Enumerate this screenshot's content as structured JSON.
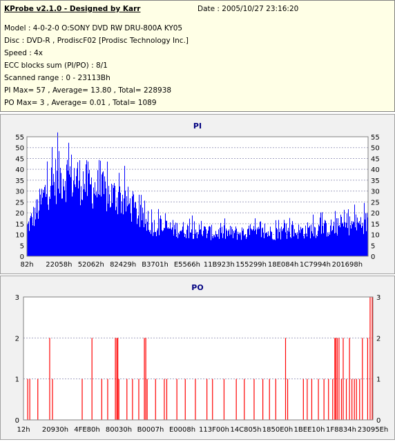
{
  "info": {
    "title": "KProbe v2.1.0 - Designed by Karr",
    "date": "Date : 2005/10/27 23:16:20",
    "lines": [
      "Model : 4-0-2-0 O:SONY    DVD RW DRU-800A  KY05",
      "Disc : DVD-R , ProdiscF02 [Prodisc Technology Inc.]",
      "Speed : 4x",
      "ECC blocks sum (PI/PO) : 8/1",
      "Scanned range : 0 - 23113Bh",
      "PI Max= 57 , Average= 13.80 , Total= 228938",
      "PO Max= 3 , Average= 0.01 , Total= 1089"
    ]
  },
  "colors": {
    "pi": "#0000ff",
    "po": "#ff0000",
    "grid": "#a0a0c0",
    "title": "#000080"
  },
  "chart_data": [
    {
      "type": "area",
      "title": "PI",
      "ylim": [
        0,
        55
      ],
      "yticks": [
        0,
        5,
        10,
        15,
        20,
        25,
        30,
        35,
        40,
        45,
        50,
        55
      ],
      "xticks": [
        "82h",
        "22058h",
        "52062h",
        "82429h",
        "B3701h",
        "E5566h",
        "11B923h",
        "155299h",
        "18E084h",
        "1C7994h",
        "201698h"
      ],
      "envelope": {
        "x": [
          0,
          3,
          6,
          9,
          12,
          15,
          18,
          21,
          24,
          27,
          30,
          33,
          36,
          40,
          45,
          50,
          55,
          60,
          70,
          80,
          90,
          100
        ],
        "y": [
          16,
          26,
          38,
          44,
          45,
          43,
          40,
          37,
          34,
          33,
          29,
          22,
          17,
          16,
          15,
          14,
          13,
          13,
          13,
          14,
          16,
          19
        ]
      },
      "max": 57
    },
    {
      "type": "bar",
      "title": "PO",
      "ylim": [
        0,
        3
      ],
      "yticks": [
        0,
        1,
        2,
        3
      ],
      "xticks": [
        "12h",
        "20930h",
        "4FE80h",
        "80030h",
        "B0007h",
        "E0008h",
        "113F00h",
        "14C805h",
        "1850E0h",
        "1BEE10h",
        "1F8834h",
        "23095Eh"
      ],
      "spikes": [
        [
          1.2,
          1
        ],
        [
          1.8,
          1
        ],
        [
          4.1,
          1
        ],
        [
          7.5,
          2
        ],
        [
          8.3,
          1
        ],
        [
          16.8,
          1
        ],
        [
          19.6,
          2
        ],
        [
          22.4,
          1
        ],
        [
          24.1,
          1
        ],
        [
          26.3,
          2
        ],
        [
          26.7,
          2
        ],
        [
          27.0,
          2
        ],
        [
          27.3,
          1
        ],
        [
          29.6,
          1
        ],
        [
          31.2,
          1
        ],
        [
          33.0,
          1
        ],
        [
          34.6,
          2
        ],
        [
          35.0,
          2
        ],
        [
          35.4,
          1
        ],
        [
          37.8,
          1
        ],
        [
          40.3,
          1
        ],
        [
          41.0,
          1
        ],
        [
          43.9,
          1
        ],
        [
          46.3,
          1
        ],
        [
          49.2,
          1
        ],
        [
          52.5,
          1
        ],
        [
          54.1,
          1
        ],
        [
          57.4,
          1
        ],
        [
          60.9,
          1
        ],
        [
          63.2,
          1
        ],
        [
          66.0,
          1
        ],
        [
          68.5,
          1
        ],
        [
          70.4,
          1
        ],
        [
          72.2,
          1
        ],
        [
          75.0,
          2
        ],
        [
          75.6,
          1
        ],
        [
          80.1,
          1
        ],
        [
          81.2,
          1
        ],
        [
          82.5,
          1
        ],
        [
          84.4,
          1
        ],
        [
          86.0,
          1
        ],
        [
          87.3,
          1
        ],
        [
          88.5,
          1
        ],
        [
          89.1,
          2
        ],
        [
          89.4,
          2
        ],
        [
          89.8,
          2
        ],
        [
          90.3,
          2
        ],
        [
          91.0,
          1
        ],
        [
          91.5,
          2
        ],
        [
          92.4,
          1
        ],
        [
          93.3,
          2
        ],
        [
          94.0,
          1
        ],
        [
          94.7,
          1
        ],
        [
          95.3,
          1
        ],
        [
          96.2,
          1
        ],
        [
          97.0,
          2
        ],
        [
          98.5,
          2
        ],
        [
          99.2,
          3
        ],
        [
          99.8,
          3
        ]
      ],
      "max": 3
    }
  ]
}
